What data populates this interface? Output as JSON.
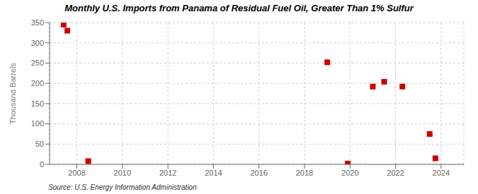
{
  "chart_data": {
    "type": "scatter",
    "title": "Monthly U.S. Imports from Panama of Residual Fuel Oil, Greater Than 1% Sulfur",
    "ylabel": "Thousand Barrels",
    "annotations": [
      "Source: U.S. Energy Information Administration"
    ],
    "x": [
      2007.42,
      2007.58,
      2008.5,
      2019.0,
      2019.9,
      2021.0,
      2021.5,
      2022.3,
      2023.5,
      2023.75
    ],
    "values": [
      345,
      330,
      8,
      252,
      2,
      192,
      204,
      192,
      75,
      15
    ],
    "color": "#cc0000",
    "marker": "square",
    "xlim": [
      2006.8,
      2025.0
    ],
    "ylim": [
      0,
      350
    ],
    "xticks": [
      2008,
      2010,
      2012,
      2014,
      2016,
      2018,
      2020,
      2022,
      2024
    ],
    "yticks": [
      0,
      50,
      100,
      150,
      200,
      250,
      300,
      350
    ],
    "grid": true
  }
}
